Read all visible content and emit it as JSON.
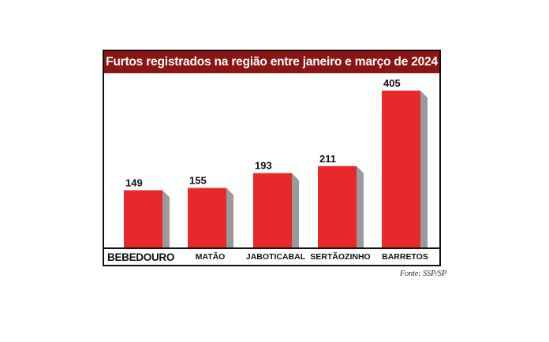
{
  "chart_data": {
    "type": "bar",
    "title": "Furtos registrados na região entre janeiro e março de 2024",
    "categories": [
      "BEBEDOURO",
      "MATÃO",
      "JABOTICABAL",
      "SERTÃOZINHO",
      "BARRETOS"
    ],
    "values": [
      149,
      155,
      193,
      211,
      405
    ],
    "ylim": [
      0,
      405
    ],
    "grid": false,
    "legend": "none",
    "colors": {
      "bar": "#e8282a",
      "bar_shadow": "#9a9a9a",
      "title_bg": "#8b1512",
      "baseline": "#111111"
    }
  },
  "source": "Fonte: SSP/SP"
}
